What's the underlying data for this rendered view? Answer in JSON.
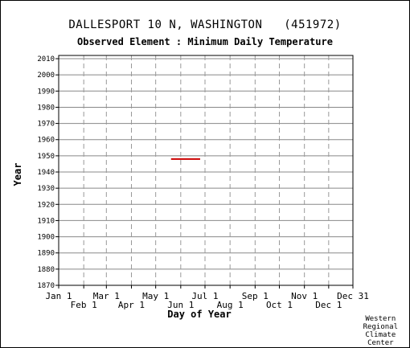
{
  "chart_data": {
    "type": "line",
    "title": "DALLESPORT 10 N, WASHINGTON   (451972)",
    "subtitle": "Observed Element : Minimum Daily Temperature",
    "xlabel": "Day of Year",
    "ylabel": "Year",
    "ylim": [
      1870,
      2012
    ],
    "y_ticks": [
      1870,
      1880,
      1890,
      1900,
      1910,
      1920,
      1930,
      1940,
      1950,
      1960,
      1970,
      1980,
      1990,
      2000,
      2010
    ],
    "x_ticks": [
      {
        "label": "Jan 1",
        "day": 1,
        "row": 1
      },
      {
        "label": "Feb 1",
        "day": 32,
        "row": 2
      },
      {
        "label": "Mar 1",
        "day": 60,
        "row": 1
      },
      {
        "label": "Apr 1",
        "day": 91,
        "row": 2
      },
      {
        "label": "May 1",
        "day": 121,
        "row": 1
      },
      {
        "label": "Jun 1",
        "day": 152,
        "row": 2
      },
      {
        "label": "Jul 1",
        "day": 182,
        "row": 1
      },
      {
        "label": "Aug 1",
        "day": 213,
        "row": 2
      },
      {
        "label": "Sep 1",
        "day": 244,
        "row": 1
      },
      {
        "label": "Oct 1",
        "day": 274,
        "row": 2
      },
      {
        "label": "Nov 1",
        "day": 305,
        "row": 1
      },
      {
        "label": "Dec 1",
        "day": 335,
        "row": 2
      },
      {
        "label": "Dec 31",
        "day": 365,
        "row": 1
      }
    ],
    "xlim": [
      1,
      365
    ],
    "series": [
      {
        "color": "#cc0000",
        "segments": [
          {
            "year": 1948,
            "start_day": 140,
            "end_day": 176
          }
        ]
      }
    ],
    "grid": true
  },
  "credit": [
    "Western",
    "Regional",
    "Climate",
    "Center"
  ]
}
